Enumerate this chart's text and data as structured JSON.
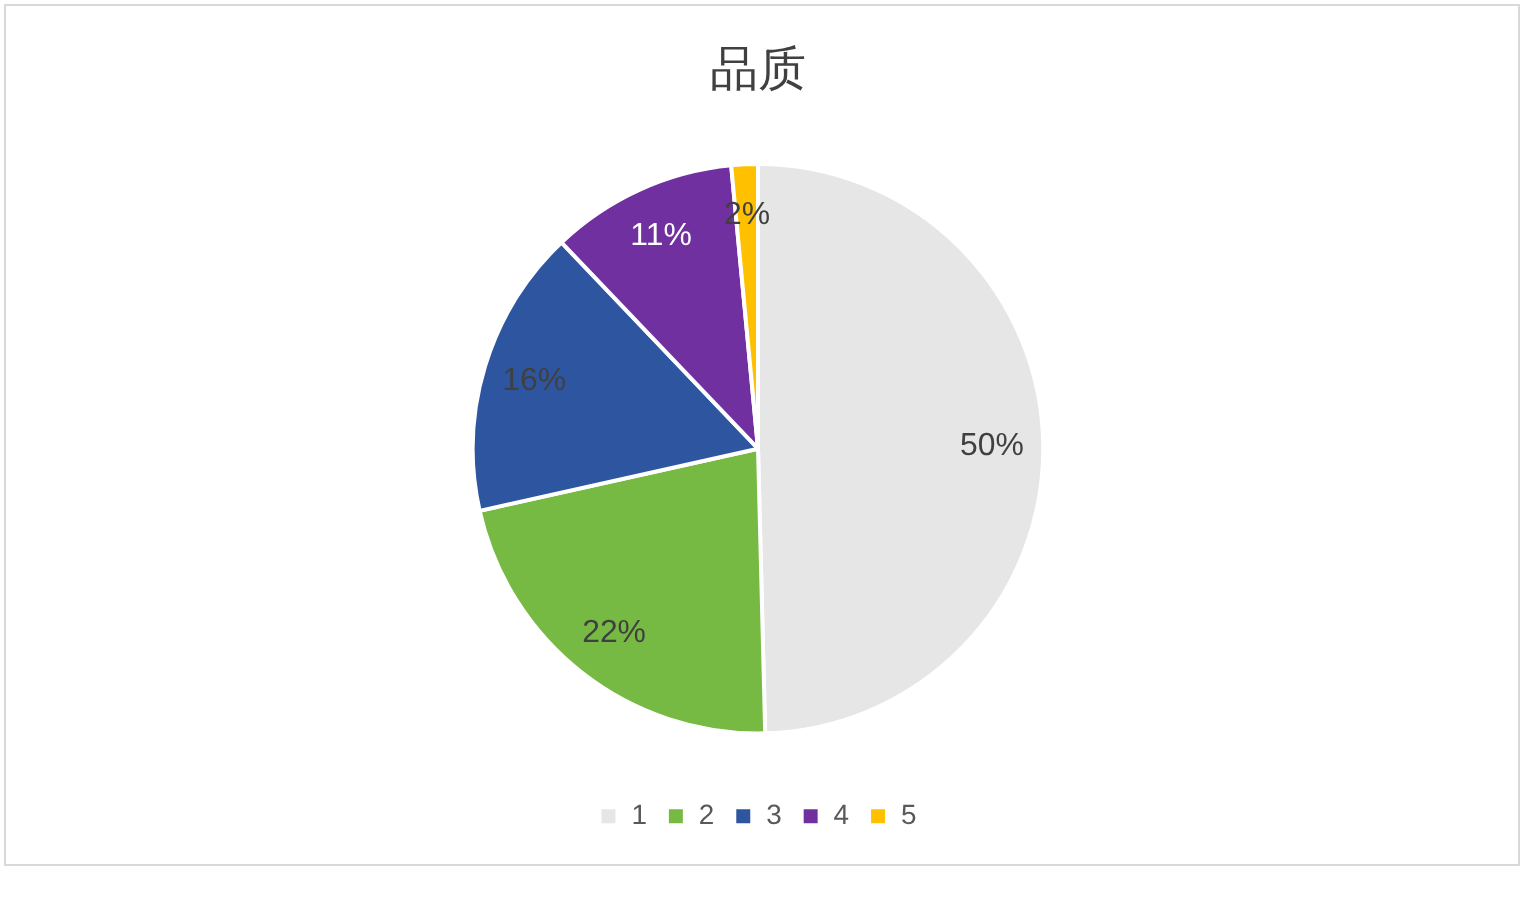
{
  "chart_data": {
    "type": "pie",
    "title": "品质",
    "categories": [
      "1",
      "2",
      "3",
      "4",
      "5"
    ],
    "values": [
      49.6,
      21.9,
      16.4,
      10.6,
      1.5
    ],
    "colors": [
      "#e7e6e6",
      "#76b943",
      "#2e55a0",
      "#7030a0",
      "#ffc000"
    ],
    "value_labels": [
      "50%",
      "22%",
      "16%",
      "11%",
      "2%"
    ],
    "legend": "bottom"
  }
}
